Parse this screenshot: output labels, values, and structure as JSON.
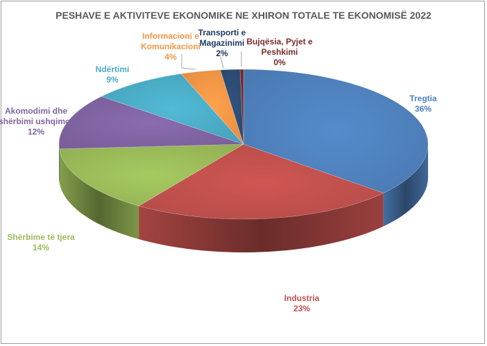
{
  "chart_data": {
    "type": "pie",
    "title": "PESHAVE E AKTIVITEVE EKONOMIKE NE XHIRON TOTALE TE EKONOMISË 2022",
    "three_d": true,
    "slices": [
      {
        "label_lines": [
          "Tregtia"
        ],
        "value_label": "36%",
        "value": 36.3,
        "color": "#4F81BD",
        "label_color": "#4F81BD"
      },
      {
        "label_lines": [
          "Industria"
        ],
        "value_label": "23%",
        "value": 23.3,
        "color": "#C0504D",
        "label_color": "#C0504D"
      },
      {
        "label_lines": [
          "Shërbime të tjera"
        ],
        "value_label": "14%",
        "value": 14.4,
        "color": "#9BBB59",
        "label_color": "#9BBB59"
      },
      {
        "label_lines": [
          "Akomodimi dhe",
          "shërbimi ushqimor"
        ],
        "value_label": "12%",
        "value": 12.0,
        "color": "#8064A2",
        "label_color": "#8064A2"
      },
      {
        "label_lines": [
          "Ndërtimi"
        ],
        "value_label": "9%",
        "value": 8.5,
        "color": "#4BACC6",
        "label_color": "#4BACC6"
      },
      {
        "label_lines": [
          "Informacioni e",
          "Komunikacioni"
        ],
        "value_label": "4%",
        "value": 3.5,
        "color": "#F79646",
        "label_color": "#F79646"
      },
      {
        "label_lines": [
          "Transporti e",
          "Magazinimi"
        ],
        "value_label": "2%",
        "value": 1.7,
        "color": "#2C4D75",
        "label_color": "#1F3864"
      },
      {
        "label_lines": [
          "Bujqësia, Pyjet e",
          "Peshkimi"
        ],
        "value_label": "0%",
        "value": 0.3,
        "color": "#772C2A",
        "label_color": "#772C2A"
      }
    ]
  }
}
